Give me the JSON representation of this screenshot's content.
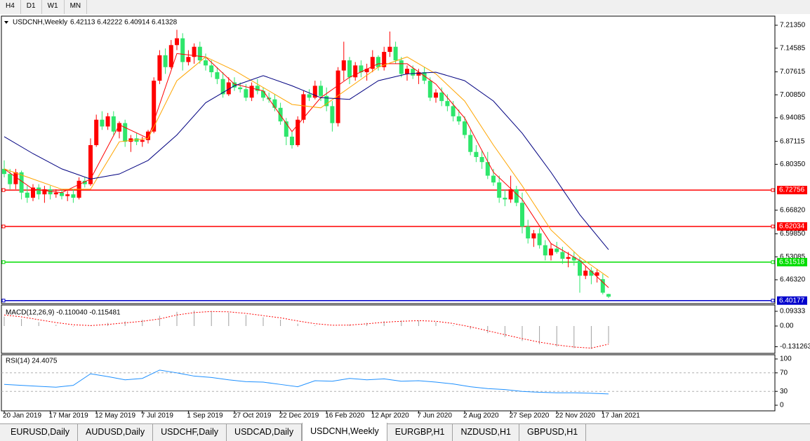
{
  "toolbar": {
    "timeframes": [
      "H4",
      "D1",
      "W1",
      "MN"
    ]
  },
  "main_chart": {
    "type": "candlestick",
    "title": "USDCNH,Weekly",
    "ohlc": "6.42113 6.42222 6.40914 6.41328",
    "ylim": [
      6.395,
      7.2383
    ],
    "yticks": [
      {
        "value": 7.2135,
        "label": "7.21350"
      },
      {
        "value": 7.14585,
        "label": "7.14585"
      },
      {
        "value": 7.07615,
        "label": "7.07615"
      },
      {
        "value": 7.0085,
        "label": "7.00850"
      },
      {
        "value": 6.94085,
        "label": "6.94085"
      },
      {
        "value": 6.87115,
        "label": "6.87115"
      },
      {
        "value": 6.8035,
        "label": "6.80350"
      },
      {
        "value": 6.6682,
        "label": "6.66820"
      },
      {
        "value": 6.5985,
        "label": "6.59850"
      },
      {
        "value": 6.53085,
        "label": "6.53085"
      },
      {
        "value": 6.4632,
        "label": "6.46320"
      }
    ],
    "up_color": "#ff0000",
    "down_color": "#2ee66b",
    "candles": [
      [
        6.79,
        6.815,
        6.765,
        6.775
      ],
      [
        6.775,
        6.79,
        6.73,
        6.745
      ],
      [
        6.745,
        6.79,
        6.73,
        6.78
      ],
      [
        6.78,
        6.785,
        6.7,
        6.72
      ],
      [
        6.72,
        6.74,
        6.69,
        6.705
      ],
      [
        6.705,
        6.745,
        6.695,
        6.735
      ],
      [
        6.735,
        6.745,
        6.7,
        6.715
      ],
      [
        6.715,
        6.74,
        6.69,
        6.73
      ],
      [
        6.73,
        6.74,
        6.7,
        6.715
      ],
      [
        6.715,
        6.73,
        6.705,
        6.72
      ],
      [
        6.72,
        6.73,
        6.7,
        6.71
      ],
      [
        6.71,
        6.725,
        6.695,
        6.715
      ],
      [
        6.715,
        6.73,
        6.69,
        6.705
      ],
      [
        6.705,
        6.765,
        6.7,
        6.755
      ],
      [
        6.755,
        6.765,
        6.735,
        6.745
      ],
      [
        6.745,
        6.88,
        6.74,
        6.86
      ],
      [
        6.86,
        6.95,
        6.855,
        6.935
      ],
      [
        6.935,
        6.96,
        6.905,
        6.915
      ],
      [
        6.915,
        6.955,
        6.905,
        6.945
      ],
      [
        6.945,
        6.96,
        6.89,
        6.9
      ],
      [
        6.9,
        6.93,
        6.88,
        6.925
      ],
      [
        6.925,
        6.935,
        6.855,
        6.87
      ],
      [
        6.87,
        6.89,
        6.84,
        6.88
      ],
      [
        6.88,
        6.895,
        6.86,
        6.87
      ],
      [
        6.87,
        6.885,
        6.855,
        6.875
      ],
      [
        6.875,
        6.905,
        6.865,
        6.9
      ],
      [
        6.9,
        7.06,
        6.895,
        7.05
      ],
      [
        7.05,
        7.14,
        7.04,
        7.125
      ],
      [
        7.125,
        7.145,
        7.07,
        7.09
      ],
      [
        7.09,
        7.17,
        7.085,
        7.155
      ],
      [
        7.155,
        7.2,
        7.14,
        7.175
      ],
      [
        7.175,
        7.19,
        7.08,
        7.105
      ],
      [
        7.105,
        7.14,
        7.095,
        7.12
      ],
      [
        7.12,
        7.16,
        7.1,
        7.15
      ],
      [
        7.15,
        7.165,
        7.1,
        7.11
      ],
      [
        7.11,
        7.13,
        7.08,
        7.095
      ],
      [
        7.095,
        7.11,
        7.06,
        7.075
      ],
      [
        7.075,
        7.09,
        7.04,
        7.055
      ],
      [
        7.055,
        7.075,
        7.0,
        7.01
      ],
      [
        7.01,
        7.06,
        7.005,
        7.045
      ],
      [
        7.045,
        7.06,
        7.02,
        7.03
      ],
      [
        7.03,
        7.045,
        7.015,
        7.025
      ],
      [
        7.025,
        7.04,
        6.99,
        7.0
      ],
      [
        7.0,
        7.045,
        6.99,
        7.035
      ],
      [
        7.035,
        7.055,
        7.01,
        7.02
      ],
      [
        7.02,
        7.03,
        6.99,
        7.0
      ],
      [
        7.0,
        7.015,
        6.985,
        6.995
      ],
      [
        6.995,
        7.01,
        6.96,
        6.97
      ],
      [
        6.97,
        6.985,
        6.92,
        6.93
      ],
      [
        6.93,
        6.94,
        6.86,
        6.885
      ],
      [
        6.885,
        6.9,
        6.85,
        6.86
      ],
      [
        6.86,
        6.945,
        6.855,
        6.935
      ],
      [
        6.935,
        7.02,
        6.925,
        7.01
      ],
      [
        7.01,
        7.025,
        6.99,
        7.0
      ],
      [
        7.0,
        7.05,
        6.995,
        7.035
      ],
      [
        7.035,
        7.05,
        6.99,
        7.005
      ],
      [
        7.005,
        7.03,
        6.96,
        6.975
      ],
      [
        6.975,
        6.99,
        6.9,
        6.925
      ],
      [
        6.925,
        7.09,
        6.915,
        7.08
      ],
      [
        7.08,
        7.165,
        7.05,
        7.11
      ],
      [
        7.11,
        7.12,
        7.04,
        7.06
      ],
      [
        7.06,
        7.105,
        7.05,
        7.095
      ],
      [
        7.095,
        7.11,
        7.06,
        7.075
      ],
      [
        7.075,
        7.1,
        7.05,
        7.085
      ],
      [
        7.085,
        7.14,
        7.075,
        7.12
      ],
      [
        7.12,
        7.125,
        7.08,
        7.09
      ],
      [
        7.09,
        7.15,
        7.08,
        7.135
      ],
      [
        7.135,
        7.195,
        7.12,
        7.15
      ],
      [
        7.15,
        7.165,
        7.1,
        7.11
      ],
      [
        7.11,
        7.12,
        7.06,
        7.07
      ],
      [
        7.07,
        7.095,
        7.05,
        7.085
      ],
      [
        7.085,
        7.095,
        7.055,
        7.065
      ],
      [
        7.065,
        7.085,
        7.04,
        7.075
      ],
      [
        7.075,
        7.09,
        7.04,
        7.05
      ],
      [
        7.05,
        7.06,
        6.99,
        7.0
      ],
      [
        7.0,
        7.025,
        6.985,
        7.015
      ],
      [
        7.015,
        7.03,
        6.975,
        6.99
      ],
      [
        6.99,
        7.01,
        6.96,
        6.975
      ],
      [
        6.975,
        6.99,
        6.93,
        6.945
      ],
      [
        6.945,
        6.965,
        6.92,
        6.93
      ],
      [
        6.93,
        6.945,
        6.88,
        6.89
      ],
      [
        6.89,
        6.905,
        6.83,
        6.84
      ],
      [
        6.84,
        6.86,
        6.81,
        6.825
      ],
      [
        6.825,
        6.845,
        6.79,
        6.81
      ],
      [
        6.81,
        6.84,
        6.76,
        6.77
      ],
      [
        6.77,
        6.79,
        6.74,
        6.75
      ],
      [
        6.75,
        6.77,
        6.69,
        6.705
      ],
      [
        6.705,
        6.73,
        6.68,
        6.7
      ],
      [
        6.7,
        6.77,
        6.69,
        6.73
      ],
      [
        6.73,
        6.74,
        6.68,
        6.69
      ],
      [
        6.69,
        6.72,
        6.6,
        6.62
      ],
      [
        6.62,
        6.64,
        6.57,
        6.585
      ],
      [
        6.585,
        6.61,
        6.56,
        6.6
      ],
      [
        6.6,
        6.615,
        6.555,
        6.565
      ],
      [
        6.565,
        6.58,
        6.52,
        6.535
      ],
      [
        6.535,
        6.57,
        6.52,
        6.555
      ],
      [
        6.555,
        6.575,
        6.54,
        6.545
      ],
      [
        6.545,
        6.56,
        6.51,
        6.525
      ],
      [
        6.525,
        6.545,
        6.5,
        6.53
      ],
      [
        6.53,
        6.545,
        6.505,
        6.52
      ],
      [
        6.52,
        6.53,
        6.425,
        6.475
      ],
      [
        6.475,
        6.505,
        6.465,
        6.49
      ],
      [
        6.49,
        6.5,
        6.45,
        6.475
      ],
      [
        6.475,
        6.495,
        6.455,
        6.485
      ],
      [
        6.465,
        6.48,
        6.42,
        6.425
      ],
      [
        6.42113,
        6.42222,
        6.40914,
        6.41328
      ]
    ],
    "series": [
      {
        "color": "#ff0000",
        "x": [
          0,
          5,
          10,
          15,
          20,
          25,
          30,
          35,
          40,
          45,
          50,
          55,
          60,
          65,
          70,
          75,
          80,
          85,
          90,
          95,
          100,
          105
        ],
        "values": [
          6.79,
          6.73,
          6.72,
          6.76,
          6.92,
          6.88,
          7.13,
          7.12,
          7.04,
          7.02,
          6.9,
          7.0,
          7.06,
          7.1,
          7.1,
          7.04,
          6.94,
          6.78,
          6.7,
          6.57,
          6.52,
          6.44
        ]
      },
      {
        "color": "#ffa500",
        "x": [
          0,
          5,
          10,
          15,
          20,
          25,
          30,
          35,
          40,
          45,
          50,
          55,
          60,
          65,
          70,
          75,
          80,
          85,
          90,
          95,
          100,
          105
        ],
        "values": [
          6.79,
          6.76,
          6.73,
          6.73,
          6.87,
          6.88,
          7.05,
          7.12,
          7.08,
          7.03,
          6.98,
          6.97,
          7.03,
          7.09,
          7.12,
          7.07,
          6.99,
          6.86,
          6.74,
          6.61,
          6.53,
          6.47
        ]
      },
      {
        "color": "#000080",
        "x": [
          0,
          5,
          10,
          15,
          20,
          25,
          30,
          35,
          40,
          45,
          50,
          55,
          60,
          65,
          70,
          75,
          80,
          85,
          90,
          95,
          100,
          105
        ],
        "values": [
          6.885,
          6.835,
          6.79,
          6.76,
          6.775,
          6.815,
          6.89,
          6.985,
          7.035,
          7.065,
          7.035,
          7.0,
          6.995,
          7.05,
          7.07,
          7.075,
          7.05,
          6.99,
          6.895,
          6.78,
          6.655,
          6.552
        ]
      }
    ],
    "levels": [
      {
        "value": 6.72756,
        "color": "#ff0000"
      },
      {
        "value": 6.62034,
        "color": "#ff0000"
      },
      {
        "value": 6.51518,
        "color": "#00dd00"
      },
      {
        "value": 6.40177,
        "color": "#0000cc"
      }
    ],
    "x_labels": [
      {
        "value": 0,
        "label": "20 Jan 2019"
      },
      {
        "value": 8,
        "label": "17 Mar 2019"
      },
      {
        "value": 16,
        "label": "12 May 2019"
      },
      {
        "value": 24,
        "label": "7 Jul 2019"
      },
      {
        "value": 32,
        "label": "1 Sep 2019"
      },
      {
        "value": 40,
        "label": "27 Oct 2019"
      },
      {
        "value": 48,
        "label": "22 Dec 2019"
      },
      {
        "value": 56,
        "label": "16 Feb 2020"
      },
      {
        "value": 64,
        "label": "12 Apr 2020"
      },
      {
        "value": 72,
        "label": "7 Jun 2020"
      },
      {
        "value": 80,
        "label": "2 Aug 2020"
      },
      {
        "value": 88,
        "label": "27 Sep 2020"
      },
      {
        "value": 96,
        "label": "22 Nov 2020"
      },
      {
        "value": 104,
        "label": "17 Jan 2021"
      }
    ]
  },
  "macd": {
    "type": "macd",
    "title": "MACD(12,26,9) -0.110040 -0.115481",
    "ylim": [
      -0.1733,
      0.1289
    ],
    "yticks": [
      0.09333,
      {
        "value": 0,
        "label": "0.00"
      },
      -0.131263
    ],
    "x": [
      0,
      3,
      6,
      9,
      12,
      15,
      18,
      21,
      24,
      27,
      30,
      33,
      36,
      39,
      42,
      45,
      48,
      51,
      54,
      57,
      60,
      63,
      66,
      69,
      72,
      75,
      78,
      81,
      84,
      87,
      90,
      93,
      96,
      99,
      102,
      105
    ],
    "histogram": {
      "color": "#a0a0a0",
      "values": [
        0.06,
        0.045,
        0.025,
        0.008,
        -0.003,
        0.005,
        0.02,
        0.03,
        0.04,
        0.065,
        0.09,
        0.098,
        0.095,
        0.085,
        0.07,
        0.055,
        0.04,
        0.015,
        0.005,
        0.0,
        0.01,
        0.02,
        0.03,
        0.035,
        0.035,
        0.025,
        0.005,
        -0.02,
        -0.045,
        -0.07,
        -0.095,
        -0.115,
        -0.13,
        -0.14,
        -0.145,
        -0.11
      ]
    },
    "signal": {
      "color": "#ff0000",
      "values": [
        0.07,
        0.058,
        0.04,
        0.022,
        0.008,
        0.003,
        0.01,
        0.02,
        0.03,
        0.045,
        0.07,
        0.085,
        0.092,
        0.09,
        0.08,
        0.066,
        0.052,
        0.032,
        0.015,
        0.005,
        0.006,
        0.014,
        0.024,
        0.03,
        0.034,
        0.03,
        0.016,
        -0.005,
        -0.03,
        -0.055,
        -0.08,
        -0.102,
        -0.12,
        -0.133,
        -0.14,
        -0.115
      ]
    }
  },
  "rsi": {
    "type": "line",
    "title": "RSI(14) 24.4075",
    "ylim": [
      -12.1,
      109.1
    ],
    "yticks": [
      100,
      70,
      30,
      0
    ],
    "levels": [
      70,
      30
    ],
    "color": "#1e90ff",
    "x": [
      0,
      3,
      6,
      9,
      12,
      15,
      18,
      21,
      24,
      27,
      30,
      33,
      36,
      39,
      42,
      45,
      48,
      51,
      54,
      57,
      60,
      63,
      66,
      69,
      72,
      75,
      78,
      81,
      84,
      87,
      90,
      93,
      96,
      99,
      102,
      105
    ],
    "values": [
      45,
      43,
      41,
      39,
      43,
      68,
      62,
      55,
      58,
      76,
      70,
      63,
      60,
      55,
      51,
      50,
      45,
      40,
      53,
      52,
      58,
      55,
      57,
      52,
      53,
      50,
      46,
      40,
      36,
      34,
      30,
      28,
      27,
      27,
      26,
      24.4075
    ]
  },
  "tabs": {
    "items": [
      "EURUSD,Daily",
      "AUDUSD,Daily",
      "USDCHF,Daily",
      "USDCAD,Daily",
      "USDCNH,Weekly",
      "EURGBP,H1",
      "NZDUSD,H1",
      "GBPUSD,H1"
    ],
    "active": 4
  }
}
